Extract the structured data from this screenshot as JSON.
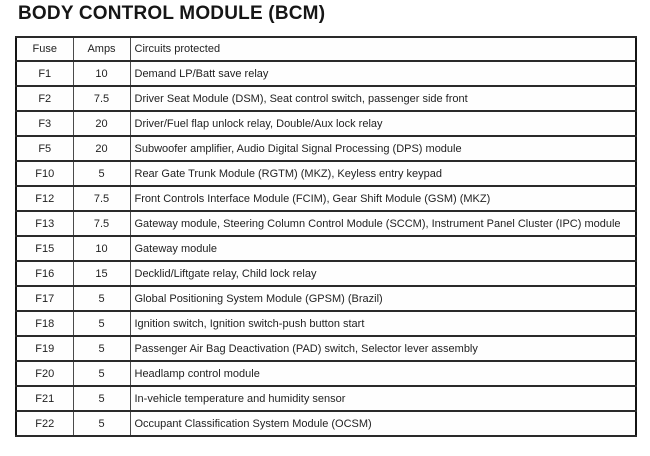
{
  "page_title": "BODY CONTROL MODULE (BCM)",
  "colors": {
    "background": "#ffffff",
    "border": "#141414",
    "text": "#1f1f1f"
  },
  "table": {
    "columns": [
      "Fuse",
      "Amps",
      "Circuits protected"
    ],
    "rows": [
      {
        "fuse": "F1",
        "amps": "10",
        "circuits": "Demand LP/Batt save relay"
      },
      {
        "fuse": "F2",
        "amps": "7.5",
        "circuits": "Driver Seat Module (DSM), Seat control switch, passenger side front"
      },
      {
        "fuse": "F3",
        "amps": "20",
        "circuits": "Driver/Fuel flap unlock relay, Double/Aux lock relay"
      },
      {
        "fuse": "F5",
        "amps": "20",
        "circuits": "Subwoofer amplifier, Audio Digital Signal Processing (DPS) module"
      },
      {
        "fuse": "F10",
        "amps": "5",
        "circuits": "Rear Gate Trunk Module (RGTM) (MKZ), Keyless entry keypad"
      },
      {
        "fuse": "F12",
        "amps": "7.5",
        "circuits": "Front Controls Interface Module (FCIM), Gear Shift Module (GSM) (MKZ)"
      },
      {
        "fuse": "F13",
        "amps": "7.5",
        "circuits": "Gateway module, Steering Column Control Module (SCCM), Instrument Panel Cluster (IPC) module"
      },
      {
        "fuse": "F15",
        "amps": "10",
        "circuits": "Gateway module"
      },
      {
        "fuse": "F16",
        "amps": "15",
        "circuits": "Decklid/Liftgate relay, Child lock relay"
      },
      {
        "fuse": "F17",
        "amps": "5",
        "circuits": "Global Positioning System Module (GPSM) (Brazil)"
      },
      {
        "fuse": "F18",
        "amps": "5",
        "circuits": "Ignition switch, Ignition switch-push button start"
      },
      {
        "fuse": "F19",
        "amps": "5",
        "circuits": "Passenger Air Bag Deactivation (PAD) switch, Selector lever assembly"
      },
      {
        "fuse": "F20",
        "amps": "5",
        "circuits": "Headlamp control module"
      },
      {
        "fuse": "F21",
        "amps": "5",
        "circuits": "In-vehicle temperature and humidity sensor"
      },
      {
        "fuse": "F22",
        "amps": "5",
        "circuits": "Occupant Classification System Module (OCSM)"
      }
    ]
  }
}
